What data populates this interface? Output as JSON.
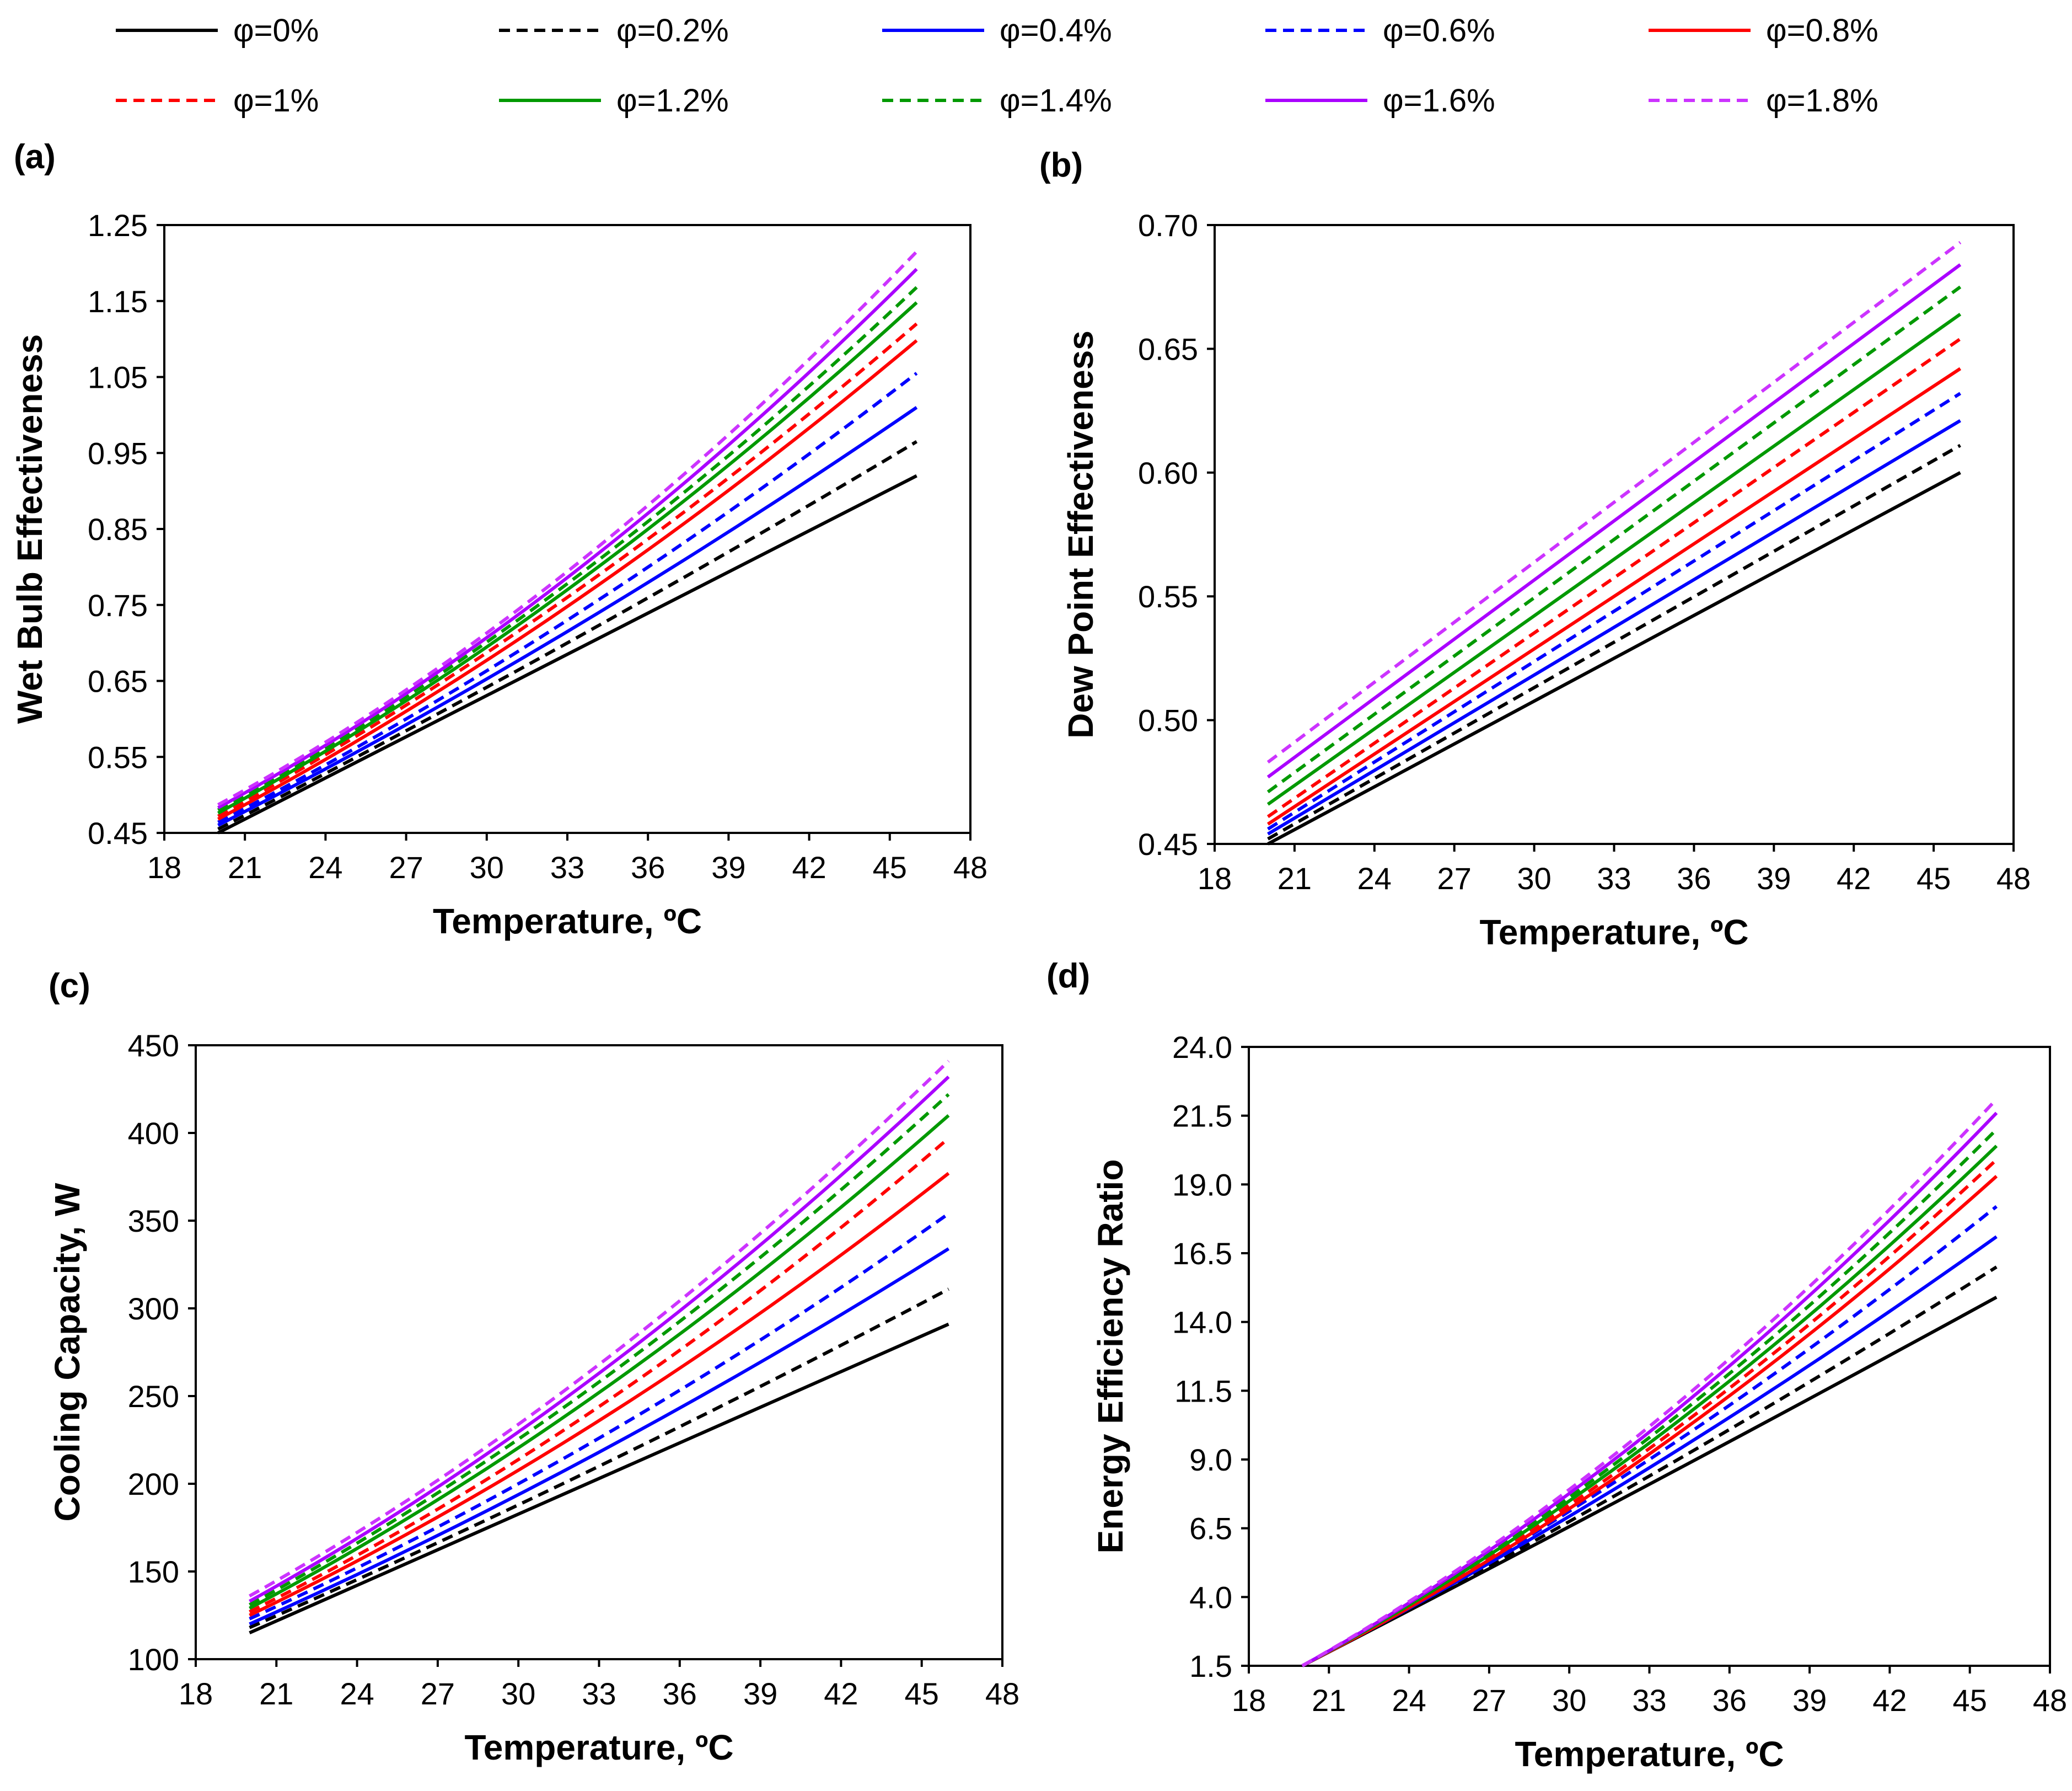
{
  "figure": {
    "x_ticks": [
      18,
      21,
      24,
      27,
      30,
      33,
      36,
      39,
      42,
      45,
      48
    ]
  },
  "legend": [
    {
      "label": "φ=0%",
      "color": "#000000",
      "dash": false
    },
    {
      "label": "φ=0.2%",
      "color": "#000000",
      "dash": true
    },
    {
      "label": "φ=0.4%",
      "color": "#0000FF",
      "dash": false
    },
    {
      "label": "φ=0.6%",
      "color": "#0000FF",
      "dash": true
    },
    {
      "label": "φ=0.8%",
      "color": "#FF0000",
      "dash": false
    },
    {
      "label": "φ=1%",
      "color": "#FF0000",
      "dash": true
    },
    {
      "label": "φ=1.2%",
      "color": "#009900",
      "dash": false
    },
    {
      "label": "φ=1.4%",
      "color": "#009900",
      "dash": true
    },
    {
      "label": "φ=1.6%",
      "color": "#AA00FF",
      "dash": false
    },
    {
      "label": "φ=1.8%",
      "color": "#CC33FF",
      "dash": true
    }
  ],
  "chart_data": [
    {
      "panel": "(a)",
      "type": "line",
      "xlabel": "Temperature, ºC",
      "ylabel": "Wet Bulb Effectiveness",
      "xlim": [
        18,
        48
      ],
      "ylim": [
        0.45,
        1.25
      ],
      "yticks": [
        "0.45",
        "0.55",
        "0.65",
        "0.75",
        "0.85",
        "0.95",
        "1.05",
        "1.15",
        "1.25"
      ],
      "x": [
        20,
        33,
        46
      ],
      "series": [
        {
          "name": "φ=0%",
          "values": [
            0.45,
            0.685,
            0.92
          ]
        },
        {
          "name": "φ=0.2%",
          "values": [
            0.455,
            0.7,
            0.965
          ]
        },
        {
          "name": "φ=0.4%",
          "values": [
            0.46,
            0.715,
            1.01
          ]
        },
        {
          "name": "φ=0.6%",
          "values": [
            0.464,
            0.73,
            1.055
          ]
        },
        {
          "name": "φ=0.8%",
          "values": [
            0.468,
            0.748,
            1.098
          ]
        },
        {
          "name": "φ=1%",
          "values": [
            0.472,
            0.76,
            1.12
          ]
        },
        {
          "name": "φ=1.2%",
          "values": [
            0.476,
            0.77,
            1.148
          ]
        },
        {
          "name": "φ=1.4%",
          "values": [
            0.48,
            0.778,
            1.168
          ]
        },
        {
          "name": "φ=1.6%",
          "values": [
            0.483,
            0.786,
            1.192
          ]
        },
        {
          "name": "φ=1.8%",
          "values": [
            0.487,
            0.794,
            1.215
          ]
        }
      ]
    },
    {
      "panel": "(b)",
      "type": "line",
      "xlabel": "Temperature, ºC",
      "ylabel": "Dew Point Effectiveness",
      "xlim": [
        18,
        48
      ],
      "ylim": [
        0.45,
        0.7
      ],
      "yticks": [
        "0.45",
        "0.50",
        "0.55",
        "0.60",
        "0.65",
        "0.70"
      ],
      "x": [
        20,
        46
      ],
      "series": [
        {
          "name": "φ=0%",
          "values": [
            0.45,
            0.6
          ]
        },
        {
          "name": "φ=0.2%",
          "values": [
            0.452,
            0.611
          ]
        },
        {
          "name": "φ=0.4%",
          "values": [
            0.454,
            0.621
          ]
        },
        {
          "name": "φ=0.6%",
          "values": [
            0.456,
            0.632
          ]
        },
        {
          "name": "φ=0.8%",
          "values": [
            0.458,
            0.642
          ]
        },
        {
          "name": "φ=1%",
          "values": [
            0.461,
            0.654
          ]
        },
        {
          "name": "φ=1.2%",
          "values": [
            0.466,
            0.664
          ]
        },
        {
          "name": "φ=1.4%",
          "values": [
            0.471,
            0.675
          ]
        },
        {
          "name": "φ=1.6%",
          "values": [
            0.477,
            0.684
          ]
        },
        {
          "name": "φ=1.8%",
          "values": [
            0.483,
            0.693
          ]
        }
      ]
    },
    {
      "panel": "(c)",
      "type": "line",
      "xlabel": "Temperature, ºC",
      "ylabel": "Cooling Capacity, W",
      "xlim": [
        18,
        48
      ],
      "ylim": [
        100,
        450
      ],
      "yticks": [
        "100",
        "150",
        "200",
        "250",
        "300",
        "350",
        "400",
        "450"
      ],
      "x": [
        20,
        33,
        46
      ],
      "series": [
        {
          "name": "φ=0%",
          "values": [
            115,
            203,
            291
          ]
        },
        {
          "name": "φ=0.2%",
          "values": [
            118,
            210,
            311
          ]
        },
        {
          "name": "φ=0.4%",
          "values": [
            120,
            218,
            334
          ]
        },
        {
          "name": "φ=0.6%",
          "values": [
            123,
            226,
            354
          ]
        },
        {
          "name": "φ=0.8%",
          "values": [
            125,
            236,
            377
          ]
        },
        {
          "name": "φ=1%",
          "values": [
            127,
            244,
            397
          ]
        },
        {
          "name": "φ=1.2%",
          "values": [
            129,
            252,
            410
          ]
        },
        {
          "name": "φ=1.4%",
          "values": [
            131,
            258,
            422
          ]
        },
        {
          "name": "φ=1.6%",
          "values": [
            133,
            263,
            432
          ]
        },
        {
          "name": "φ=1.8%",
          "values": [
            136,
            268,
            441
          ]
        }
      ]
    },
    {
      "panel": "(d)",
      "type": "line",
      "xlabel": "Temperature, ºC",
      "ylabel": "Energy Efficiency Ratio",
      "xlim": [
        18,
        48
      ],
      "ylim": [
        1.5,
        24.0
      ],
      "yticks": [
        "1.5",
        "4.0",
        "6.5",
        "9.0",
        "11.5",
        "14.0",
        "16.5",
        "19.0",
        "21.5",
        "24.0"
      ],
      "x": [
        20,
        33,
        46
      ],
      "series": [
        {
          "name": "φ=0%",
          "values": [
            1.5,
            8.1,
            14.9
          ]
        },
        {
          "name": "φ=0.2%",
          "values": [
            1.5,
            8.4,
            16.0
          ]
        },
        {
          "name": "φ=0.4%",
          "values": [
            1.5,
            8.7,
            17.1
          ]
        },
        {
          "name": "φ=0.6%",
          "values": [
            1.5,
            9.0,
            18.2
          ]
        },
        {
          "name": "φ=0.8%",
          "values": [
            1.5,
            9.2,
            19.3
          ]
        },
        {
          "name": "φ=1%",
          "values": [
            1.5,
            9.4,
            19.9
          ]
        },
        {
          "name": "φ=1.2%",
          "values": [
            1.5,
            9.6,
            20.4
          ]
        },
        {
          "name": "φ=1.4%",
          "values": [
            1.5,
            9.8,
            21.0
          ]
        },
        {
          "name": "φ=1.6%",
          "values": [
            1.5,
            10.0,
            21.6
          ]
        },
        {
          "name": "φ=1.8%",
          "values": [
            1.5,
            10.2,
            22.1
          ]
        }
      ]
    }
  ]
}
